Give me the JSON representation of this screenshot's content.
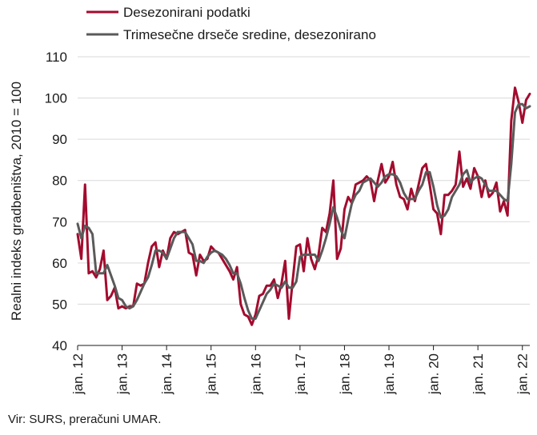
{
  "chart_data": {
    "type": "line",
    "title": "",
    "xlabel": "",
    "ylabel": "Realni indeks gradbeništva, 2010 = 100",
    "ylim": [
      40,
      110
    ],
    "yticks": [
      "40",
      "50",
      "60",
      "70",
      "80",
      "90",
      "100",
      "110"
    ],
    "x_start": "jan. 12",
    "x_end": "jul. 22",
    "xticks": [
      "jan. 12",
      "jan. 13",
      "jan. 14",
      "jan. 15",
      "jan. 16",
      "jan. 17",
      "jan. 18",
      "jan. 19",
      "jan. 20",
      "jan. 21",
      "jan. 22"
    ],
    "grid": "horizontal",
    "legend": "top",
    "series": [
      {
        "name": "Desezonirani podatki",
        "color": "#a30b2e",
        "values": [
          67.0,
          61.0,
          79.0,
          57.5,
          58.0,
          56.5,
          58.5,
          63.0,
          51.0,
          52.0,
          54.0,
          49.0,
          49.5,
          49.0,
          49.5,
          49.5,
          55.0,
          54.5,
          55.0,
          60.0,
          64.0,
          65.0,
          59.0,
          63.0,
          61.0,
          66.0,
          67.5,
          67.0,
          67.5,
          68.0,
          62.5,
          62.0,
          57.0,
          62.0,
          60.5,
          61.0,
          64.0,
          63.0,
          62.5,
          61.0,
          59.5,
          58.0,
          56.0,
          59.0,
          50.0,
          47.5,
          47.0,
          45.0,
          47.5,
          52.0,
          52.5,
          54.5,
          54.5,
          56.0,
          51.5,
          55.0,
          60.5,
          46.5,
          55.5,
          64.0,
          64.5,
          58.0,
          66.0,
          61.0,
          58.5,
          62.0,
          68.5,
          67.5,
          72.0,
          80.0,
          61.0,
          63.5,
          73.0,
          76.0,
          74.5,
          79.0,
          79.5,
          80.0,
          81.0,
          80.0,
          75.0,
          80.0,
          84.0,
          79.5,
          81.0,
          84.5,
          79.0,
          76.0,
          75.5,
          73.0,
          78.0,
          75.0,
          79.0,
          83.0,
          84.0,
          79.0,
          73.0,
          72.0,
          67.0,
          76.5,
          76.5,
          77.5,
          79.0,
          87.0,
          78.5,
          80.5,
          78.0,
          83.0,
          81.0,
          76.0,
          80.0,
          76.0,
          77.0,
          79.5,
          72.5,
          75.0,
          71.5,
          94.5,
          102.5,
          99.0,
          94.0,
          99.5,
          101.0
        ]
      },
      {
        "name": "Trimesečne drseče sredine, desezonirano",
        "color": "#5a5a5a",
        "values": [
          69.5,
          66.0,
          69.0,
          68.5,
          67.0,
          57.5,
          57.5,
          57.5,
          59.5,
          57.0,
          54.5,
          51.5,
          51.0,
          49.5,
          49.0,
          49.5,
          51.0,
          53.0,
          55.0,
          56.5,
          59.5,
          63.0,
          63.0,
          62.5,
          61.0,
          63.5,
          66.0,
          67.5,
          67.5,
          67.5,
          66.0,
          64.5,
          60.5,
          60.5,
          60.0,
          61.5,
          62.5,
          63.0,
          62.5,
          62.0,
          61.0,
          59.5,
          57.5,
          57.5,
          55.0,
          51.5,
          48.5,
          46.5,
          46.5,
          48.5,
          50.5,
          52.5,
          53.5,
          55.0,
          54.5,
          54.0,
          55.5,
          54.0,
          54.0,
          55.5,
          61.5,
          62.0,
          62.0,
          62.0,
          62.0,
          60.5,
          63.0,
          66.0,
          69.5,
          73.5,
          71.0,
          68.0,
          66.0,
          70.5,
          74.5,
          76.5,
          77.5,
          79.5,
          80.0,
          80.5,
          79.5,
          78.5,
          79.5,
          81.0,
          81.5,
          81.5,
          81.0,
          79.5,
          77.0,
          75.5,
          75.5,
          75.5,
          77.5,
          79.0,
          82.0,
          82.0,
          78.5,
          74.0,
          71.0,
          71.5,
          73.0,
          76.0,
          77.5,
          79.0,
          81.5,
          82.5,
          79.5,
          80.5,
          81.0,
          80.5,
          79.0,
          77.5,
          77.5,
          77.5,
          76.5,
          75.5,
          75.0,
          84.0,
          96.5,
          98.5,
          98.5,
          97.5,
          98.0
        ]
      }
    ]
  },
  "source_note": "Vir: SURS, preračuni UMAR."
}
